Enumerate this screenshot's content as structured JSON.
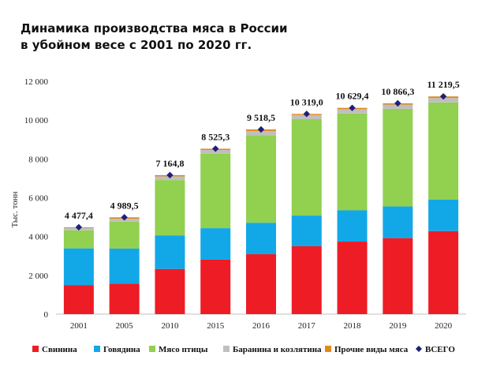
{
  "title_line1": "Динамика производства мяса в России",
  "title_line2": "в убойном весе с 2001 по 2020 гг.",
  "chart_data": {
    "type": "bar",
    "stacked": true,
    "ylabel": "Тыс. тонн",
    "ylim": [
      0,
      12000
    ],
    "y_ticks": [
      "0",
      "2 000",
      "4 000",
      "6 000",
      "8 000",
      "10 000",
      "12 000"
    ],
    "y_tick_values": [
      0,
      2000,
      4000,
      6000,
      8000,
      10000,
      12000
    ],
    "grid": false,
    "legend_position": "bottom",
    "categories": [
      "2001",
      "2005",
      "2010",
      "2015",
      "2016",
      "2017",
      "2018",
      "2019",
      "2020"
    ],
    "series": [
      {
        "name": "Свинина",
        "color": "#ee1c25",
        "values": [
          1500,
          1570,
          2330,
          2810,
          3090,
          3500,
          3740,
          3920,
          4280
        ]
      },
      {
        "name": "Говядина",
        "color": "#12a8e8",
        "values": [
          1890,
          1810,
          1730,
          1620,
          1620,
          1580,
          1610,
          1630,
          1630
        ]
      },
      {
        "name": "Мясо птицы",
        "color": "#92d050",
        "values": [
          930,
          1390,
          2850,
          3830,
          4510,
          4970,
          4990,
          5030,
          5000
        ]
      },
      {
        "name": "Баранина и козлятина",
        "color": "#bfbfbf",
        "values": [
          120,
          150,
          190,
          200,
          220,
          210,
          220,
          220,
          230
        ]
      },
      {
        "name": "Прочие виды мяса",
        "color": "#e08a1e",
        "values": [
          37,
          70,
          65,
          65,
          79,
          59,
          70,
          66,
          80
        ]
      }
    ],
    "totals": {
      "name": "ВСЕГО",
      "color": "#1f1f7a",
      "values": [
        4477.4,
        4989.5,
        7164.8,
        8525.3,
        9518.5,
        10319.0,
        10629.4,
        10866.3,
        11219.5
      ],
      "labels": [
        "4 477,4",
        "4 989,5",
        "7 164,8",
        "8 525,3",
        "9 518,5",
        "10 319,0",
        "10 629,4",
        "10 866,3",
        "11 219,5"
      ]
    }
  }
}
